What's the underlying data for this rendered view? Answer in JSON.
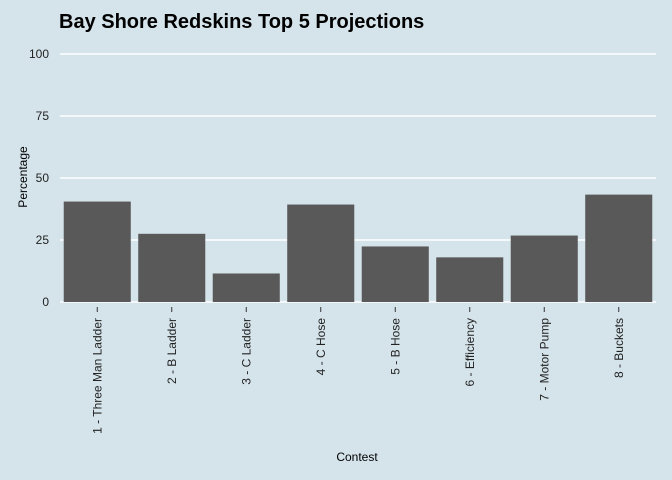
{
  "chart_data": {
    "type": "bar",
    "title": "Bay Shore Redskins Top 5 Projections",
    "xlabel": "Contest",
    "ylabel": "Percentage",
    "categories": [
      "1 - Three Man Ladder",
      "2 - B Ladder",
      "3 - C Ladder",
      "4 - C Hose",
      "5 - B Hose",
      "6 - Efficiency",
      "7 - Motor Pump",
      "8 - Buckets"
    ],
    "values": [
      40.5,
      27.5,
      11.5,
      39.3,
      22.4,
      18,
      26.8,
      43.3
    ],
    "ylim": [
      0,
      100
    ],
    "yticks": [
      0,
      25,
      50,
      75,
      100
    ],
    "grid": true,
    "bar_color": "#595959",
    "grid_color": "#ffffff",
    "background_color": "#d5e4eb"
  }
}
